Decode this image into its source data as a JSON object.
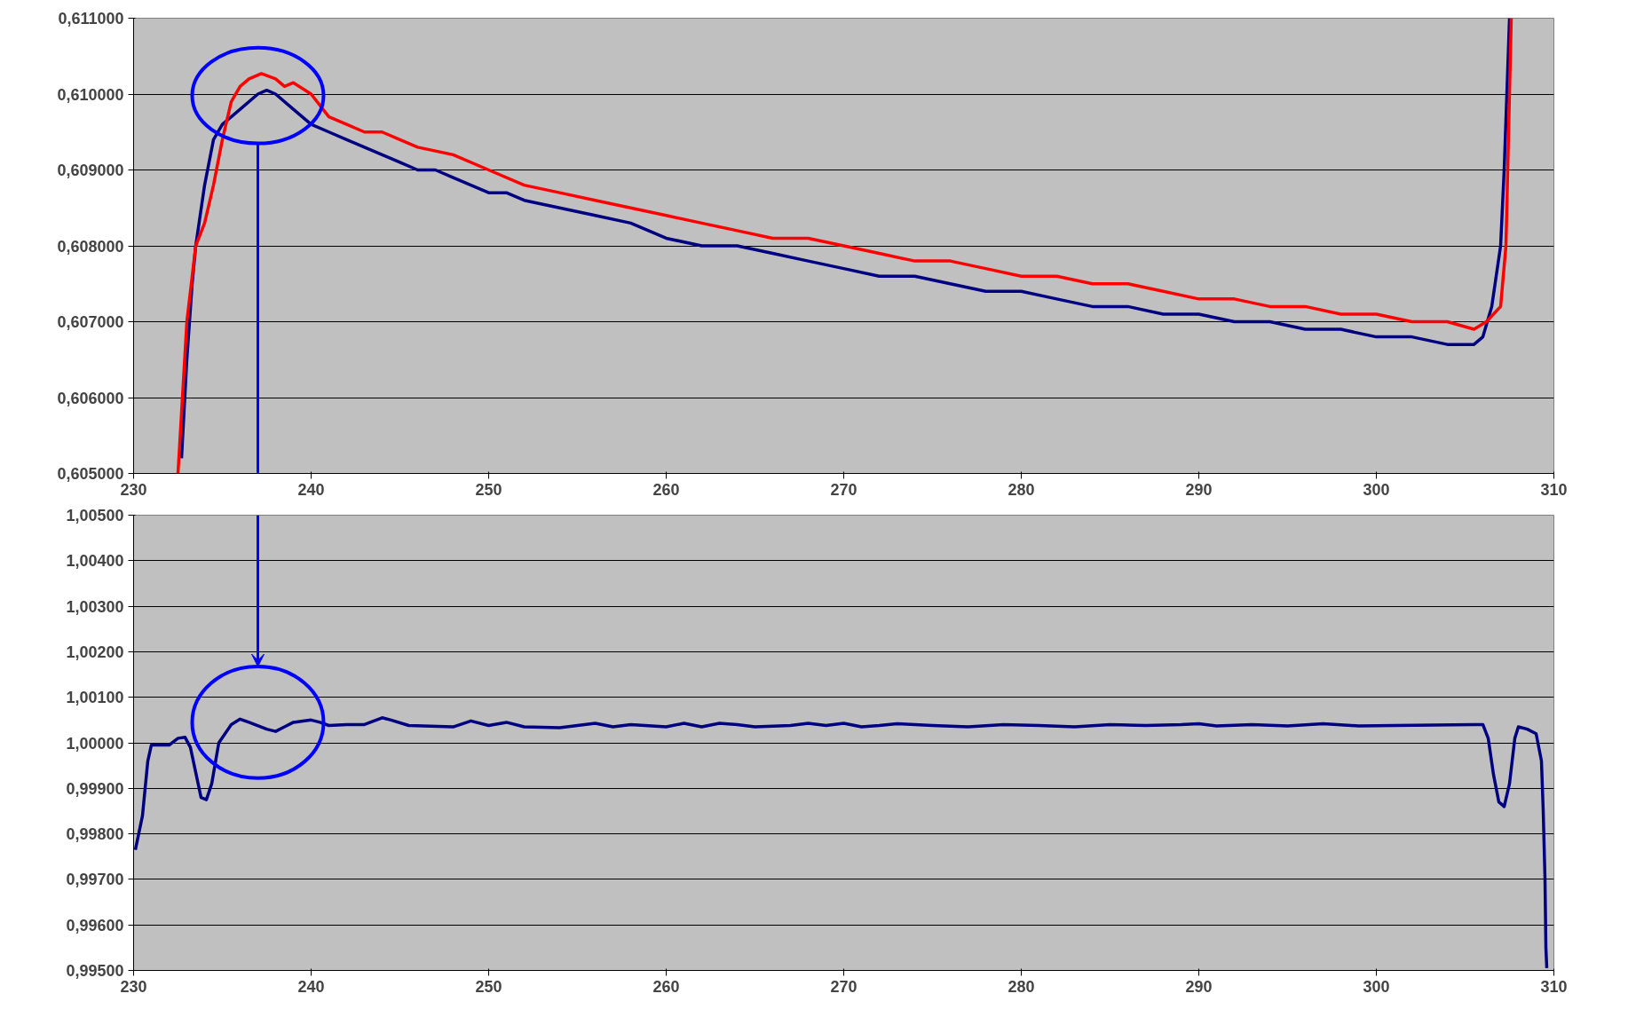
{
  "chart_data": [
    {
      "type": "line",
      "xlim": [
        230,
        310
      ],
      "xticks": [
        230,
        240,
        250,
        260,
        270,
        280,
        290,
        300,
        310
      ],
      "ylim": [
        0.605,
        0.611
      ],
      "yticks": [
        {
          "value": 0.605,
          "label": "0,605000"
        },
        {
          "value": 0.606,
          "label": "0,606000"
        },
        {
          "value": 0.607,
          "label": "0,607000"
        },
        {
          "value": 0.608,
          "label": "0,608000"
        },
        {
          "value": 0.609,
          "label": "0,609000"
        },
        {
          "value": 0.61,
          "label": "0,610000"
        },
        {
          "value": 0.611,
          "label": "0,611000"
        }
      ],
      "grid": "y",
      "line_style": "solid",
      "series": [
        {
          "color": "#000080",
          "x": [
            232.7,
            233,
            233.3,
            233.5,
            234,
            234.5,
            235,
            236,
            237,
            237.5,
            238,
            239,
            240,
            241,
            242,
            243,
            244,
            245,
            246,
            247,
            248,
            249,
            250,
            251,
            252,
            254,
            256,
            258,
            259,
            260,
            262,
            264,
            266,
            268,
            270,
            272,
            274,
            276,
            278,
            280,
            282,
            284,
            286,
            288,
            290,
            292,
            294,
            296,
            298,
            300,
            302,
            304,
            305.5,
            306,
            306.5,
            307,
            307.2,
            307.5
          ],
          "values": [
            0.6052,
            0.6065,
            0.6075,
            0.608,
            0.6088,
            0.6094,
            0.6096,
            0.6098,
            0.61,
            0.61005,
            0.61,
            0.6098,
            0.6096,
            0.6095,
            0.6094,
            0.6093,
            0.6092,
            0.6091,
            0.609,
            0.609,
            0.6089,
            0.6088,
            0.6087,
            0.6087,
            0.6086,
            0.6085,
            0.6084,
            0.6083,
            0.6082,
            0.6081,
            0.608,
            0.608,
            0.6079,
            0.6078,
            0.6077,
            0.6076,
            0.6076,
            0.6075,
            0.6074,
            0.6074,
            0.6073,
            0.6072,
            0.6072,
            0.6071,
            0.6071,
            0.607,
            0.607,
            0.6069,
            0.6069,
            0.6068,
            0.6068,
            0.6067,
            0.6067,
            0.6068,
            0.6072,
            0.608,
            0.609,
            0.611
          ]
        },
        {
          "color": "#ff0000",
          "x": [
            232.5,
            233,
            233.5,
            234,
            234.5,
            235,
            235.5,
            236,
            236.5,
            237.2,
            238,
            238.5,
            239,
            240,
            241,
            242,
            243,
            244,
            245,
            246,
            248,
            250,
            252,
            254,
            256,
            258,
            260,
            262,
            264,
            266,
            268,
            270,
            272,
            274,
            276,
            278,
            280,
            282,
            284,
            286,
            288,
            290,
            292,
            294,
            296,
            298,
            300,
            302,
            304,
            305.5,
            306.2,
            307,
            307.3,
            307.4,
            307.6
          ],
          "values": [
            0.605,
            0.607,
            0.608,
            0.6083,
            0.6088,
            0.6094,
            0.6099,
            0.6101,
            0.6102,
            0.61027,
            0.6102,
            0.6101,
            0.61015,
            0.61,
            0.6097,
            0.6096,
            0.6095,
            0.6095,
            0.6094,
            0.6093,
            0.6092,
            0.609,
            0.6088,
            0.6087,
            0.6086,
            0.6085,
            0.6084,
            0.6083,
            0.6082,
            0.6081,
            0.6081,
            0.608,
            0.6079,
            0.6078,
            0.6078,
            0.6077,
            0.6076,
            0.6076,
            0.6075,
            0.6075,
            0.6074,
            0.6073,
            0.6073,
            0.6072,
            0.6072,
            0.6071,
            0.6071,
            0.607,
            0.607,
            0.6069,
            0.607,
            0.6072,
            0.608,
            0.609,
            0.611
          ]
        }
      ]
    },
    {
      "type": "line",
      "xlim": [
        230,
        310
      ],
      "xticks": [
        230,
        240,
        250,
        260,
        270,
        280,
        290,
        300,
        310
      ],
      "ylim": [
        0.995,
        1.005
      ],
      "yticks": [
        {
          "value": 0.995,
          "label": "0,99500"
        },
        {
          "value": 0.996,
          "label": "0,99600"
        },
        {
          "value": 0.997,
          "label": "0,99700"
        },
        {
          "value": 0.998,
          "label": "0,99800"
        },
        {
          "value": 0.999,
          "label": "0,99900"
        },
        {
          "value": 1.0,
          "label": "1,00000"
        },
        {
          "value": 1.001,
          "label": "1,00100"
        },
        {
          "value": 1.002,
          "label": "1,00200"
        },
        {
          "value": 1.003,
          "label": "1,00300"
        },
        {
          "value": 1.004,
          "label": "1,00400"
        },
        {
          "value": 1.005,
          "label": "1,00500"
        }
      ],
      "grid": "y",
      "line_style": "solid",
      "series": [
        {
          "color": "#000080",
          "x": [
            230.1,
            230.5,
            230.8,
            231,
            232,
            232.5,
            232.9,
            233.2,
            233.8,
            234.1,
            234.4,
            234.8,
            235.5,
            236,
            236.5,
            237.5,
            238,
            238.5,
            239,
            240,
            240.5,
            241,
            242,
            243,
            244,
            244.5,
            245.5,
            248,
            249,
            250,
            251,
            252,
            254,
            256,
            257,
            258,
            260,
            261,
            262,
            263,
            264,
            265,
            267,
            268,
            269,
            270,
            271,
            272,
            273,
            275,
            277,
            279,
            281,
            283,
            285,
            287,
            289,
            290,
            291,
            293,
            295,
            297,
            299,
            301,
            305.5,
            306,
            306.3,
            306.6,
            306.9,
            307.2,
            307.5,
            307.8,
            308,
            308.5,
            309,
            309.3,
            309.4,
            309.5,
            309.55,
            309.6
          ],
          "values": [
            0.99765,
            0.9984,
            0.9996,
            0.99995,
            0.99995,
            1.0001,
            1.00012,
            0.9999,
            0.9988,
            0.99875,
            0.9991,
            1.0,
            1.0004,
            1.00052,
            1.00045,
            1.0003,
            1.00025,
            1.00035,
            1.00045,
            1.0005,
            1.00045,
            1.00038,
            1.0004,
            1.0004,
            1.00055,
            1.0005,
            1.00038,
            1.00035,
            1.00048,
            1.00038,
            1.00045,
            1.00035,
            1.00033,
            1.00043,
            1.00035,
            1.0004,
            1.00035,
            1.00043,
            1.00035,
            1.00043,
            1.0004,
            1.00035,
            1.00038,
            1.00043,
            1.00038,
            1.00043,
            1.00035,
            1.00038,
            1.00042,
            1.00038,
            1.00035,
            1.0004,
            1.00038,
            1.00035,
            1.0004,
            1.00038,
            1.0004,
            1.00042,
            1.00037,
            1.0004,
            1.00037,
            1.00042,
            1.00037,
            1.00038,
            1.0004,
            1.0004,
            1.0001,
            0.9993,
            0.9987,
            0.9986,
            0.9991,
            1.0001,
            1.00035,
            1.0003,
            1.0002,
            0.9996,
            0.9985,
            0.997,
            0.9955,
            0.99505
          ]
        }
      ]
    }
  ]
}
